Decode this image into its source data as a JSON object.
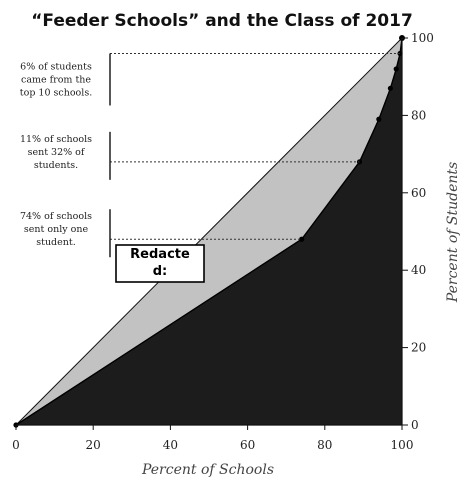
{
  "chart_data": {
    "type": "area",
    "title": "“Feeder Schools” and the Class of 2017",
    "xlabel": "Percent of Schools",
    "ylabel": "Percent of Students",
    "xlim": [
      0,
      100
    ],
    "ylim": [
      0,
      100
    ],
    "x_ticks": [
      "0",
      "20",
      "40",
      "60",
      "80",
      "100"
    ],
    "y_ticks": [
      "0",
      "20",
      "40",
      "60",
      "80",
      "100"
    ],
    "grid": false,
    "series": [
      {
        "x": [
          0,
          100
        ],
        "y": [
          0,
          100
        ]
      },
      {
        "x": [
          0,
          74,
          89,
          94,
          97,
          98.5,
          99.5,
          100
        ],
        "y": [
          0,
          48,
          68,
          79,
          87,
          92,
          96,
          100
        ]
      }
    ],
    "annotations": [
      {
        "text": [
          "6% of students",
          "came from the",
          "top 10 schools."
        ],
        "y": 96
      },
      {
        "text": [
          "11% of schools",
          "sent 32% of",
          "students."
        ],
        "y": 68
      },
      {
        "text": [
          "74% of schools",
          "sent only one",
          "student."
        ],
        "y": 48
      }
    ],
    "redaction": {
      "lines": [
        "Redacte",
        "d:"
      ]
    },
    "colors": {
      "fill_between": "#c2c2c2",
      "fill_under": "#1c1c1c",
      "background": "#ffffff"
    }
  }
}
